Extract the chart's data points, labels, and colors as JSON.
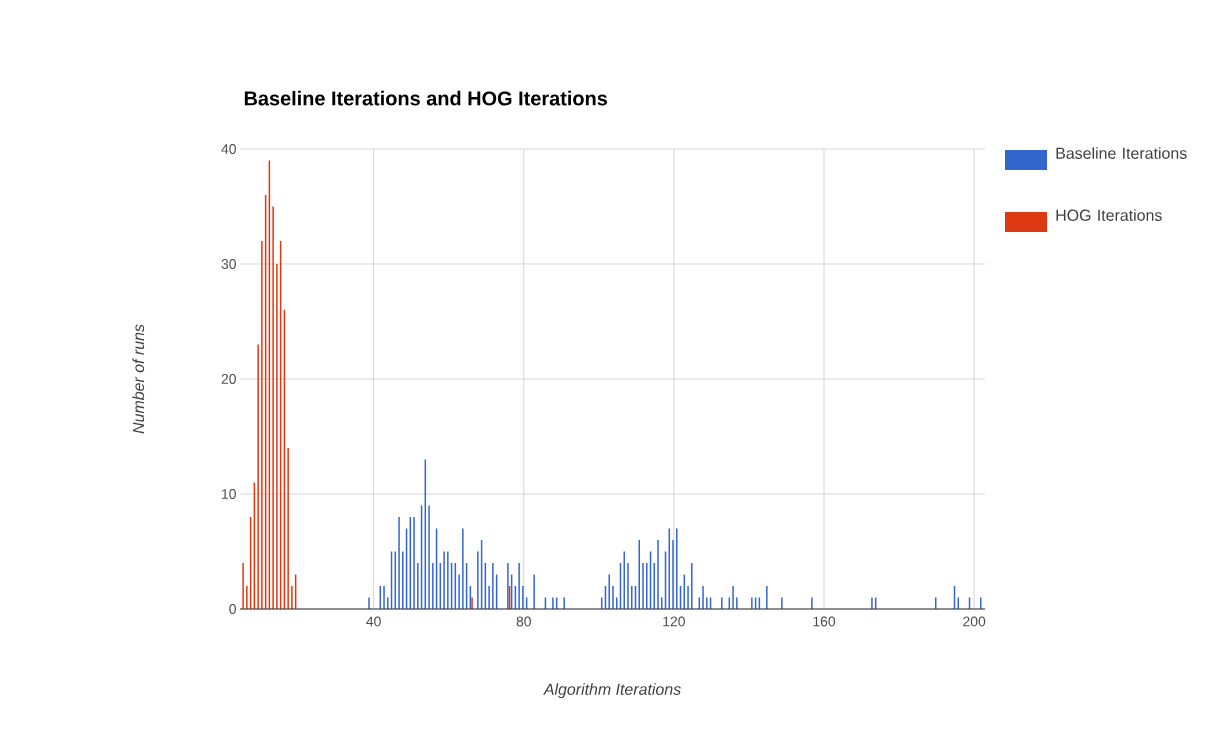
{
  "chart_data": {
    "type": "bar",
    "title": "Baseline Iterations and HOG Iterations",
    "xlabel": "Algorithm Iterations",
    "ylabel": "Number of runs",
    "xlim": [
      4.4,
      202.9
    ],
    "xticks": [
      40,
      80,
      120,
      160,
      200
    ],
    "ylim": [
      0,
      40
    ],
    "yticks": [
      0,
      10,
      20,
      30,
      40
    ],
    "grid": true,
    "legend": "top right",
    "series": [
      {
        "name": "Baseline Iterations",
        "color": "#3366cc",
        "x": [
          39,
          42,
          43,
          44,
          45,
          46,
          47,
          48,
          49,
          50,
          51,
          52,
          53,
          54,
          55,
          56,
          57,
          58,
          59,
          60,
          61,
          62,
          63,
          64,
          65,
          66,
          68,
          69,
          70,
          71,
          72,
          73,
          76,
          77,
          78,
          79,
          80,
          81,
          83,
          86,
          88,
          89,
          91,
          101,
          102,
          103,
          104,
          105,
          106,
          107,
          108,
          109,
          110,
          111,
          112,
          113,
          114,
          115,
          116,
          117,
          118,
          119,
          120,
          121,
          122,
          123,
          124,
          125,
          127,
          128,
          129,
          130,
          133,
          135,
          136,
          137,
          141,
          142,
          143,
          145,
          149,
          157,
          173,
          174,
          190,
          195,
          196,
          199,
          202
        ],
        "values": [
          1,
          2,
          2,
          1,
          5,
          5,
          8,
          5,
          7,
          8,
          8,
          4,
          9,
          13,
          9,
          4,
          7,
          4,
          5,
          5,
          4,
          4,
          3,
          7,
          4,
          2,
          5,
          6,
          4,
          2,
          4,
          3,
          4,
          3,
          2,
          4,
          2,
          1,
          3,
          1,
          1,
          1,
          1,
          1,
          2,
          3,
          2,
          1,
          4,
          5,
          4,
          2,
          2,
          6,
          4,
          4,
          5,
          4,
          6,
          1,
          5,
          7,
          6,
          7,
          2,
          3,
          2,
          4,
          1,
          2,
          1,
          1,
          1,
          1,
          2,
          1,
          1,
          1,
          1,
          2,
          1,
          1,
          1,
          1,
          1,
          2,
          1,
          1,
          1
        ]
      },
      {
        "name": "HOG Iterations",
        "color": "#dc3912",
        "x": [
          5,
          6,
          7,
          8,
          9,
          10,
          11,
          12,
          13,
          14,
          15,
          16,
          17,
          18,
          19,
          66,
          76
        ],
        "values": [
          4,
          2,
          8,
          11,
          23,
          32,
          36,
          39,
          35,
          30,
          32,
          26,
          14,
          2,
          3,
          1,
          2
        ]
      }
    ]
  }
}
